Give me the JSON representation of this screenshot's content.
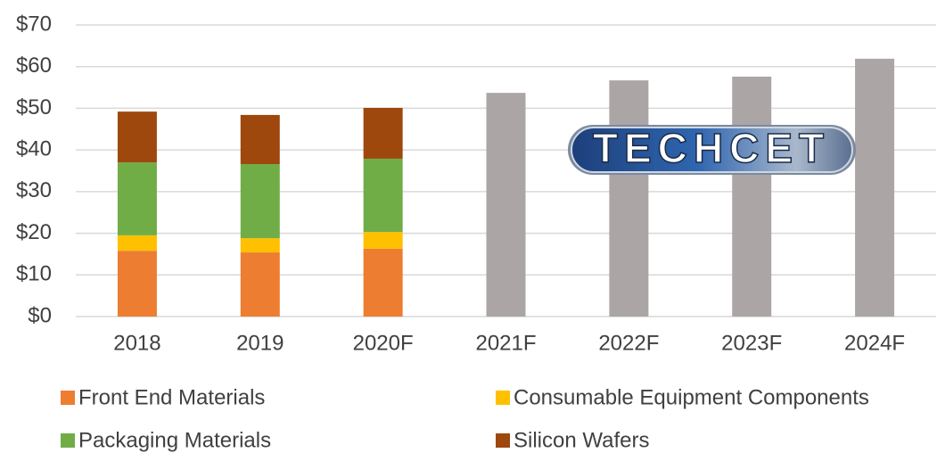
{
  "chart_data": {
    "type": "stacked_bar",
    "categories": [
      "2018",
      "2019",
      "2020F",
      "2021F",
      "2022F",
      "2023F",
      "2024F"
    ],
    "series": [
      {
        "name": "Front End Materials",
        "color": "#ed7d31",
        "values": [
          15.8,
          15.4,
          16.3,
          null,
          null,
          null,
          null
        ]
      },
      {
        "name": "Consumable Equipment Components",
        "color": "#ffc000",
        "values": [
          3.7,
          3.4,
          4.0,
          null,
          null,
          null,
          null
        ]
      },
      {
        "name": "Packaging Materials",
        "color": "#70ad47",
        "values": [
          17.5,
          17.8,
          17.6,
          null,
          null,
          null,
          null
        ]
      },
      {
        "name": "Silicon Wafers",
        "color": "#9e480e",
        "values": [
          12.2,
          11.8,
          12.2,
          null,
          null,
          null,
          null
        ]
      },
      {
        "color": "#aba6a5",
        "values": [
          null,
          null,
          null,
          53.7,
          56.7,
          57.6,
          61.9
        ]
      }
    ],
    "ylim": [
      0,
      70
    ],
    "yticks": [
      {
        "value": 0,
        "label": "$0"
      },
      {
        "value": 10,
        "label": "$10"
      },
      {
        "value": 20,
        "label": "$20"
      },
      {
        "value": 30,
        "label": "$30"
      },
      {
        "value": 40,
        "label": "$40"
      },
      {
        "value": 50,
        "label": "$50"
      },
      {
        "value": 60,
        "label": "$60"
      },
      {
        "value": 70,
        "label": "$70"
      }
    ],
    "grid": true,
    "legend": "bottom",
    "logo": "TECHCET"
  }
}
